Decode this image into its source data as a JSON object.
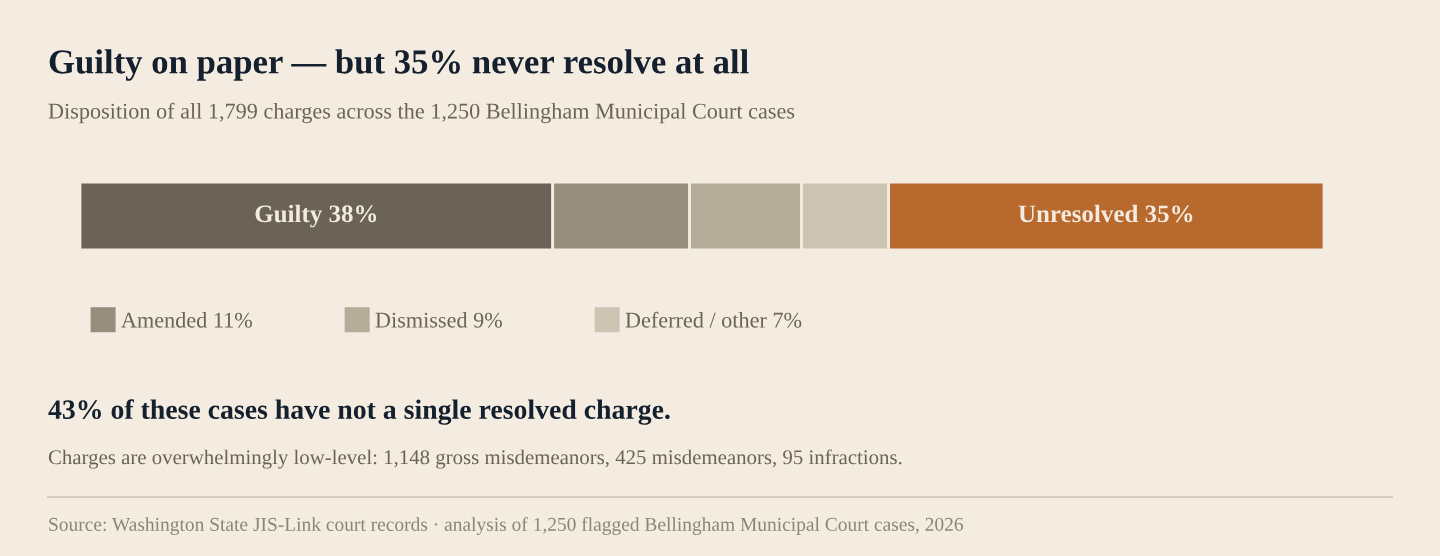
{
  "chart_data": {
    "type": "bar",
    "orientation": "horizontal",
    "stacked": true,
    "title": "Guilty on paper — but 35% never resolve at all",
    "subtitle": "Disposition of all 1,799 charges across the 1,250 Bellingham Municipal Court cases",
    "categories": [
      null
    ],
    "series": [
      {
        "color": "#6b6357",
        "values": [
          38
        ],
        "value_labels": [
          "Guilty 38%"
        ]
      },
      {
        "name": "Amended 11%",
        "color": "#968f7e",
        "values": [
          11
        ],
        "value_labels": [
          null
        ]
      },
      {
        "name": "Dismissed 9%",
        "color": "#b5ac99",
        "values": [
          9
        ],
        "value_labels": [
          null
        ]
      },
      {
        "name": "Deferred / other 7%",
        "color": "#cdc5b3",
        "values": [
          7
        ],
        "value_labels": [
          null
        ]
      },
      {
        "color": "#b8692e",
        "values": [
          35
        ],
        "value_labels": [
          "Unresolved 35%"
        ]
      }
    ],
    "legend": "bottom left",
    "annotations": [
      "43% of these cases have not a single resolved charge.",
      "Charges are overwhelmingly low-level: 1,148 gross misdemeanors, 425 misdemeanors, 95 infractions.",
      "Source: Washington State JIS-Link court records · analysis of 1,250 flagged Bellingham Municipal Court cases, 2026"
    ]
  }
}
